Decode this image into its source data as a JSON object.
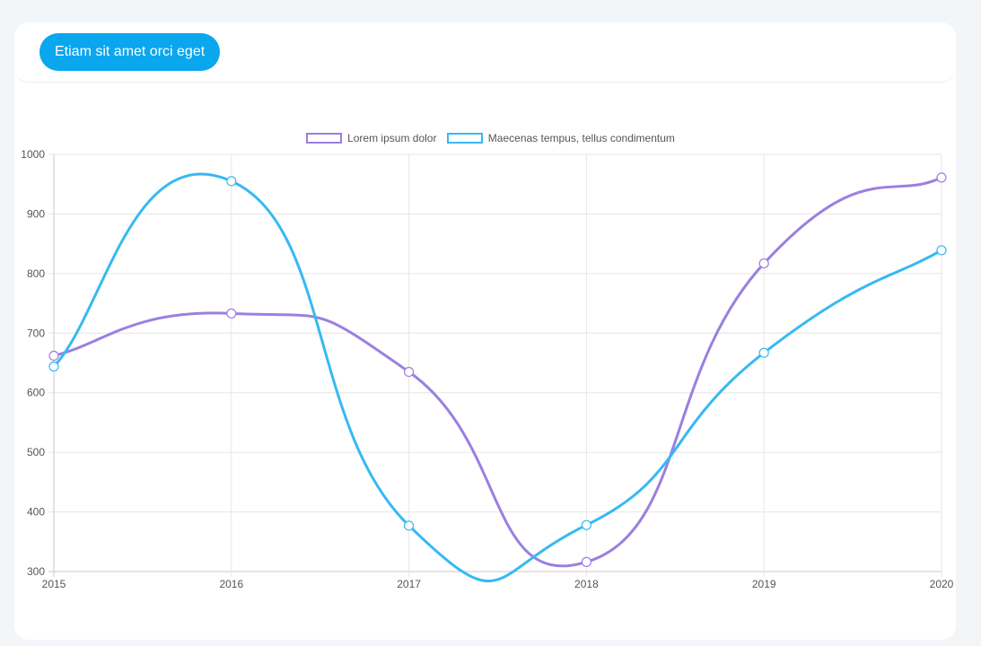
{
  "header": {
    "button_label": "Etiam sit amet orci eget"
  },
  "colors": {
    "accent": "#0aa6ee",
    "series1": "#9b7fe0",
    "series2": "#36b9f3",
    "grid": "#e6e6e6"
  },
  "chart_data": {
    "type": "line",
    "title": "",
    "xlabel": "",
    "ylabel": "",
    "x": [
      "2015",
      "2016",
      "2017",
      "2018",
      "2019",
      "2020"
    ],
    "ylim": [
      300,
      1000
    ],
    "yticks": [
      300,
      400,
      500,
      600,
      700,
      800,
      900,
      1000
    ],
    "grid": true,
    "legend": "top-center",
    "series": [
      {
        "name": "Lorem ipsum dolor",
        "color": "#9b7fe0",
        "values": [
          662,
          733,
          635,
          316,
          817,
          961
        ]
      },
      {
        "name": "Maecenas tempus, tellus condimentum",
        "color": "#36b9f3",
        "values": [
          644,
          955,
          377,
          378,
          667,
          839
        ]
      }
    ]
  }
}
